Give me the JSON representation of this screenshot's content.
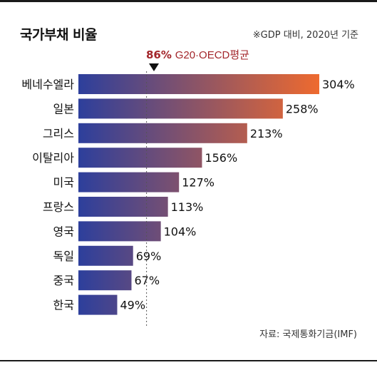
{
  "header": {
    "title": "국가부채 비율",
    "note": "※GDP 대비, 2020년 기준"
  },
  "average": {
    "value_label": "86%",
    "label": "G20·OECD평균",
    "value": 86
  },
  "footer": {
    "source": "자료: 국제통화기금(IMF)"
  },
  "colors": {
    "bar_start": "#2d3f9c",
    "bar_end": "#ee6a2f",
    "avg_text": "#a3262b"
  },
  "chart_data": {
    "type": "bar",
    "orientation": "horizontal",
    "title": "국가부채 비율",
    "subtitle": "※GDP 대비, 2020년 기준",
    "categories": [
      "베네수엘라",
      "일본",
      "그리스",
      "이탈리아",
      "미국",
      "프랑스",
      "영국",
      "독일",
      "중국",
      "한국"
    ],
    "values": [
      304,
      258,
      213,
      156,
      127,
      113,
      104,
      69,
      67,
      49
    ],
    "value_labels": [
      "304%",
      "258%",
      "213%",
      "156%",
      "127%",
      "113%",
      "104%",
      "69%",
      "67%",
      "49%"
    ],
    "reference_line": 86,
    "xlim": [
      0,
      304
    ],
    "grid": false,
    "legend": "none"
  }
}
